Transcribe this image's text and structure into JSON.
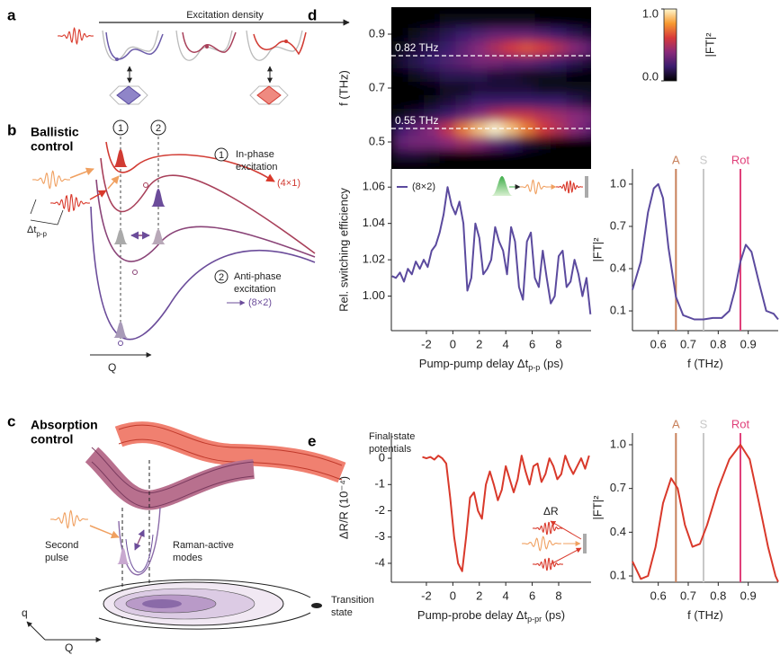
{
  "panels": {
    "a": {
      "label": "a",
      "axis_label": "Excitation density"
    },
    "b": {
      "label": "b",
      "title": [
        "Ballistic",
        "control"
      ],
      "steps": [
        "1",
        "2"
      ],
      "in_phase": [
        "In-phase",
        "excitation"
      ],
      "in_phase_state": "(4×1)",
      "anti_phase": [
        "Anti-phase",
        "excitation"
      ],
      "anti_phase_state": "(8×2)",
      "delay": [
        "Δt",
        "p-p"
      ],
      "axis": "Q"
    },
    "c": {
      "label": "c",
      "title": [
        "Absorption",
        "control"
      ],
      "final_state": [
        "Final-state",
        "potentials"
      ],
      "second_pulse": [
        "Second",
        "pulse"
      ],
      "raman": [
        "Raman-active",
        "modes"
      ],
      "transition": [
        "Transition",
        "state"
      ],
      "axis_q": "q",
      "axis_Q": "Q"
    },
    "d": {
      "label": "d"
    },
    "e": {
      "label": "e",
      "inset_label": "ΔR"
    }
  },
  "chart_data": [
    {
      "type": "heatmap",
      "ylabel": "f (THz)",
      "xlim": [
        -4.65,
        10.45
      ],
      "ylim": [
        0.4,
        1.0
      ],
      "yticks": [
        0.5,
        0.7,
        0.9
      ],
      "x": [
        -4,
        -2.8,
        -1.6,
        -0.4,
        0.8,
        2,
        3.2,
        4.4,
        5.6,
        6.8,
        8,
        9.2,
        10.4
      ],
      "y": [
        0.45,
        0.5,
        0.55,
        0.6,
        0.65,
        0.7,
        0.75,
        0.8,
        0.85,
        0.9,
        0.95
      ],
      "z": [
        [
          0.1,
          0.1,
          0.05,
          0,
          0,
          0,
          0,
          0,
          0,
          0,
          0,
          0,
          0
        ],
        [
          0.3,
          0.35,
          0.35,
          0.4,
          0.45,
          0.4,
          0.3,
          0.2,
          0.1,
          0.05,
          0,
          0,
          0
        ],
        [
          0.2,
          0.3,
          0.4,
          0.55,
          0.75,
          0.9,
          1.0,
          0.9,
          0.75,
          0.6,
          0.5,
          0.4,
          0.3
        ],
        [
          0.05,
          0.1,
          0.15,
          0.2,
          0.3,
          0.4,
          0.5,
          0.55,
          0.55,
          0.5,
          0.45,
          0.4,
          0.35
        ],
        [
          0,
          0,
          0.05,
          0.1,
          0.15,
          0.2,
          0.2,
          0.2,
          0.2,
          0.2,
          0.2,
          0.15,
          0.1
        ],
        [
          0,
          0,
          0,
          0.05,
          0.05,
          0.1,
          0.1,
          0.1,
          0.1,
          0.05,
          0.05,
          0.05,
          0.05
        ],
        [
          0,
          0.05,
          0.1,
          0.15,
          0.15,
          0.15,
          0.1,
          0.1,
          0.05,
          0.05,
          0.05,
          0,
          0
        ],
        [
          0.1,
          0.15,
          0.2,
          0.25,
          0.3,
          0.35,
          0.35,
          0.3,
          0.3,
          0.25,
          0.2,
          0.15,
          0.1
        ],
        [
          0.05,
          0.1,
          0.15,
          0.2,
          0.3,
          0.4,
          0.5,
          0.6,
          0.65,
          0.6,
          0.5,
          0.4,
          0.3
        ],
        [
          0,
          0.05,
          0.1,
          0.15,
          0.2,
          0.25,
          0.3,
          0.3,
          0.3,
          0.25,
          0.2,
          0.15,
          0.1
        ],
        [
          0,
          0,
          0,
          0.05,
          0.05,
          0.05,
          0.05,
          0.05,
          0.05,
          0,
          0,
          0,
          0
        ]
      ],
      "annotations": [
        {
          "label": "0.82 THz",
          "value": 0.82
        },
        {
          "label": "0.55 THz",
          "value": 0.55
        }
      ],
      "colorbar": {
        "label": "|FT|²",
        "lim": [
          0,
          1
        ],
        "ticks": [
          {
            "value": 0,
            "label": "0.0"
          },
          {
            "value": 1,
            "label": "1.0"
          }
        ]
      }
    },
    {
      "type": "line",
      "ylabel": "Rel. switching efficiency",
      "xlabel": [
        "Pump-pump delay Δt",
        "p-p",
        " (ps)"
      ],
      "xlim": [
        -4.65,
        10.45
      ],
      "ylim": [
        0.981,
        1.07
      ],
      "xticks": [
        -2,
        0,
        2,
        4,
        6,
        8
      ],
      "yticks": [
        {
          "value": 1,
          "label": "1.00"
        },
        1.02,
        1.04,
        1.06
      ],
      "x": [
        -4.6,
        -4.3,
        -4.0,
        -3.7,
        -3.4,
        -3.1,
        -2.8,
        -2.5,
        -2.2,
        -1.9,
        -1.6,
        -1.3,
        -1.0,
        -0.7,
        -0.4,
        -0.1,
        0.2,
        0.5,
        0.8,
        1.1,
        1.4,
        1.7,
        2.0,
        2.3,
        2.6,
        2.9,
        3.2,
        3.5,
        3.8,
        4.1,
        4.4,
        4.7,
        5.0,
        5.3,
        5.6,
        5.9,
        6.2,
        6.5,
        6.8,
        7.1,
        7.4,
        7.7,
        8.0,
        8.3,
        8.6,
        8.9,
        9.2,
        9.5,
        9.8,
        10.1,
        10.4
      ],
      "series": [
        {
          "name": "(8×2)",
          "color": "#5b4a9e",
          "values": [
            1.011,
            1.01,
            1.013,
            1.008,
            1.015,
            1.012,
            1.019,
            1.015,
            1.02,
            1.016,
            1.025,
            1.028,
            1.035,
            1.045,
            1.06,
            1.05,
            1.045,
            1.052,
            1.04,
            1.003,
            1.01,
            1.04,
            1.032,
            1.012,
            1.015,
            1.02,
            1.038,
            1.03,
            1.025,
            1.012,
            1.038,
            1.03,
            1.005,
            0.998,
            1.03,
            1.035,
            1.01,
            1.005,
            1.025,
            1.01,
            0.996,
            1.0,
            1.022,
            1.025,
            1.005,
            1.008,
            1.02,
            1.012,
            1.0,
            1.01,
            0.99
          ]
        }
      ]
    },
    {
      "type": "line",
      "ylabel": "|FT|²",
      "xlabel": [
        "f (THz)"
      ],
      "xlim": [
        0.514,
        1.0
      ],
      "ylim": [
        -0.04,
        1.108
      ],
      "xticks": [
        0.6,
        0.7,
        0.8,
        0.9
      ],
      "yticks": [
        0.1,
        0.4,
        0.7,
        {
          "value": 1,
          "label": "1.0"
        }
      ],
      "x": [
        0.514,
        0.542,
        0.566,
        0.585,
        0.6,
        0.616,
        0.634,
        0.659,
        0.683,
        0.72,
        0.751,
        0.782,
        0.812,
        0.837,
        0.856,
        0.874,
        0.892,
        0.911,
        0.936,
        0.96,
        0.985,
        1.0
      ],
      "series": [
        {
          "color": "#5b4a9e",
          "values": [
            0.25,
            0.45,
            0.8,
            0.97,
            1.0,
            0.9,
            0.55,
            0.2,
            0.07,
            0.04,
            0.04,
            0.05,
            0.05,
            0.1,
            0.25,
            0.45,
            0.57,
            0.52,
            0.3,
            0.1,
            0.08,
            0.04
          ]
        }
      ],
      "markers": [
        {
          "label": "A",
          "value": 0.659,
          "color": "#c8805a"
        },
        {
          "label": "S",
          "value": 0.751,
          "color": "#c8c8c8"
        },
        {
          "label": "Rot",
          "value": 0.874,
          "color": "#e0407a"
        }
      ]
    },
    {
      "type": "line",
      "ylabel": "ΔR/R (10⁻⁴)",
      "xlabel": [
        "Pump-probe delay Δt",
        "p-pr",
        " (ps)"
      ],
      "xlim": [
        -4.65,
        10.45
      ],
      "ylim": [
        -4.72,
        0.96
      ],
      "xticks": [
        -2,
        0,
        2,
        4,
        6,
        8
      ],
      "yticks": [
        0,
        -1,
        -2,
        -3,
        -4
      ],
      "x": [
        -2.3,
        -2.0,
        -1.7,
        -1.4,
        -1.1,
        -0.8,
        -0.5,
        -0.2,
        0.1,
        0.4,
        0.7,
        1.0,
        1.3,
        1.6,
        1.9,
        2.2,
        2.5,
        2.8,
        3.1,
        3.4,
        3.7,
        4.0,
        4.3,
        4.6,
        4.9,
        5.2,
        5.5,
        5.8,
        6.1,
        6.4,
        6.7,
        7.0,
        7.3,
        7.6,
        7.9,
        8.2,
        8.5,
        8.8,
        9.1,
        9.4,
        9.7,
        10.0,
        10.3
      ],
      "series": [
        {
          "color": "#d9392b",
          "values": [
            0.05,
            0,
            0.05,
            -0.05,
            0.1,
            0,
            -0.2,
            -1.5,
            -3,
            -4,
            -4.3,
            -3,
            -1.5,
            -1.3,
            -2,
            -2.3,
            -1,
            -0.5,
            -1,
            -1.6,
            -1.2,
            -0.3,
            -0.8,
            -1.3,
            -0.8,
            0.1,
            -0.5,
            -1,
            -0.3,
            -0.2,
            -0.9,
            -0.6,
            0,
            -0.3,
            -0.8,
            -0.6,
            0.1,
            -0.3,
            -0.6,
            -0.3,
            0,
            -0.4,
            0.1
          ]
        }
      ]
    },
    {
      "type": "line",
      "ylabel": "|FT|²",
      "xlabel": [
        "f (THz)"
      ],
      "xlim": [
        0.514,
        1.0
      ],
      "ylim": [
        0.057,
        1.08
      ],
      "xticks": [
        0.6,
        0.7,
        0.8,
        0.9
      ],
      "yticks": [
        0.1,
        0.4,
        0.7,
        {
          "value": 1,
          "label": "1.0"
        }
      ],
      "x": [
        0.514,
        0.542,
        0.566,
        0.591,
        0.616,
        0.643,
        0.665,
        0.689,
        0.714,
        0.739,
        0.763,
        0.8,
        0.837,
        0.874,
        0.905,
        0.936,
        0.966,
        0.991,
        1.0
      ],
      "series": [
        {
          "color": "#d9392b",
          "values": [
            0.2,
            0.08,
            0.1,
            0.3,
            0.6,
            0.77,
            0.7,
            0.45,
            0.3,
            0.32,
            0.45,
            0.7,
            0.9,
            1.0,
            0.9,
            0.6,
            0.3,
            0.1,
            0.06
          ]
        }
      ],
      "markers": [
        {
          "label": "A",
          "value": 0.659,
          "color": "#c8805a"
        },
        {
          "label": "S",
          "value": 0.751,
          "color": "#c8c8c8"
        },
        {
          "label": "Rot",
          "value": 0.874,
          "color": "#e0407a"
        }
      ]
    }
  ]
}
